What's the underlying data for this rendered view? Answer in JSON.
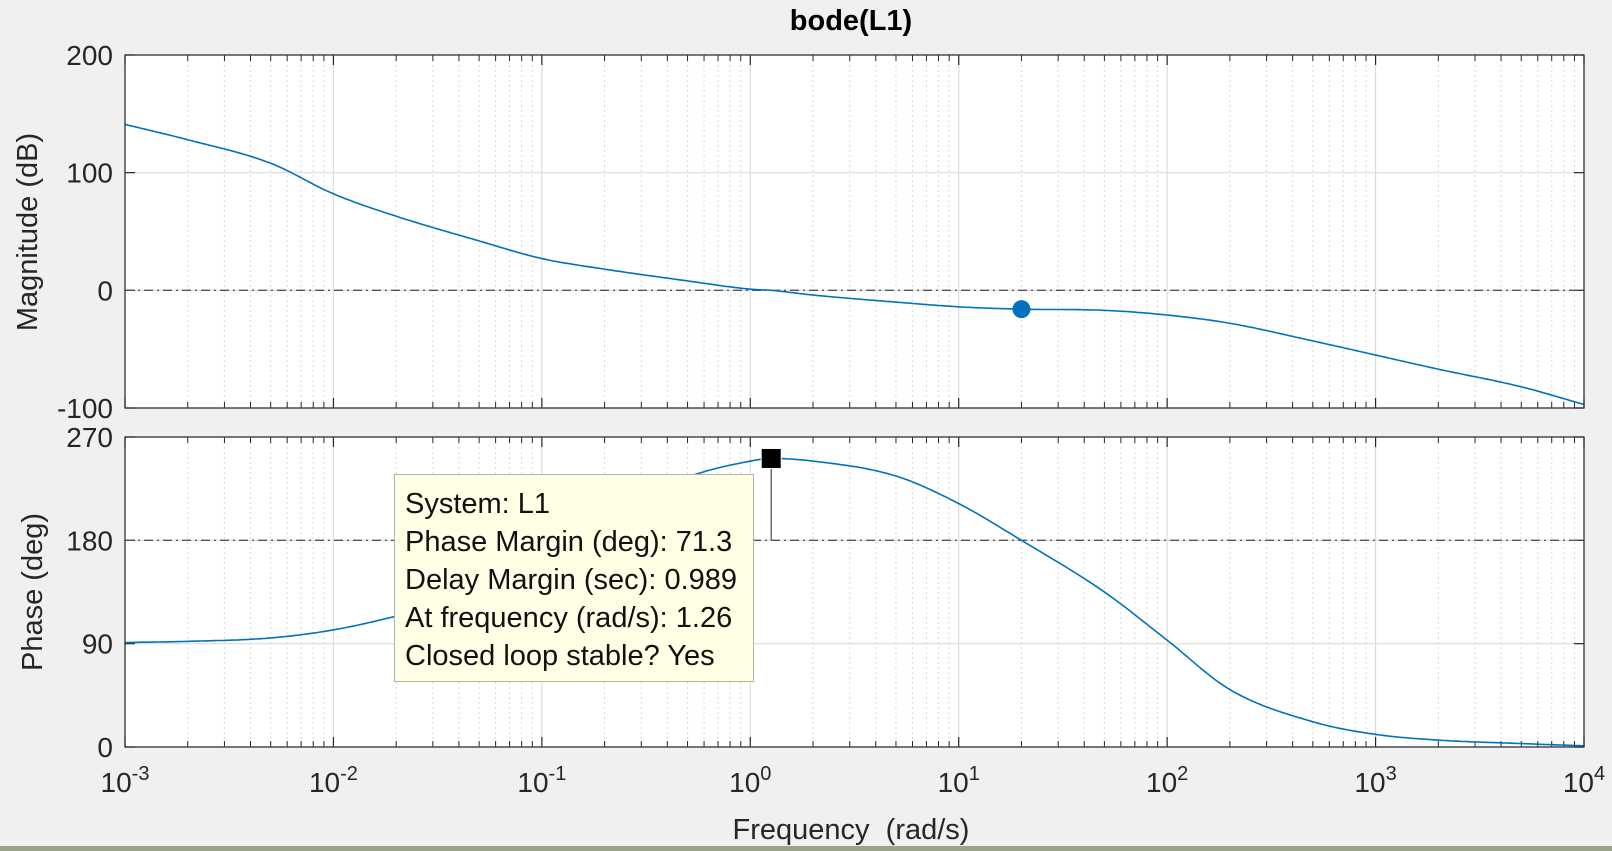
{
  "window": {
    "title": "bode(L1)"
  },
  "chart_data": {
    "type": "line",
    "title": "bode(L1)",
    "xlabel": "Frequency  (rad/s)",
    "x_scale": "log",
    "xlim": [
      0.001,
      10000
    ],
    "x_ticks": [
      0.001,
      0.01,
      0.1,
      1,
      10,
      100,
      1000,
      10000
    ],
    "x_tick_labels": [
      {
        "base": "10",
        "exp": "-3"
      },
      {
        "base": "10",
        "exp": "-2"
      },
      {
        "base": "10",
        "exp": "-1"
      },
      {
        "base": "10",
        "exp": "0"
      },
      {
        "base": "10",
        "exp": "1"
      },
      {
        "base": "10",
        "exp": "2"
      },
      {
        "base": "10",
        "exp": "3"
      },
      {
        "base": "10",
        "exp": "4"
      }
    ],
    "grid": true,
    "line_color": "#0072bd",
    "panels": [
      {
        "name": "magnitude",
        "ylabel": "Magnitude (dB)",
        "ylim": [
          -100,
          200
        ],
        "y_ticks": [
          -100,
          0,
          100,
          200
        ],
        "y_tick_labels": [
          "-100",
          "0",
          "100",
          "200"
        ],
        "reference_line": 0,
        "series": [
          {
            "x": [
              0.001,
              0.002,
              0.005,
              0.01,
              0.02,
              0.05,
              0.1,
              0.2,
              0.5,
              1,
              1.26,
              2,
              5,
              10,
              20,
              50,
              100,
              200,
              500,
              1000,
              2000,
              5000,
              10000
            ],
            "y": [
              141,
              128,
              108,
              82,
              63,
              42,
              27,
              18,
              8,
              1,
              0,
              -4,
              -10,
              -14,
              -16,
              -17,
              -21,
              -28,
              -43,
              -55,
              -67,
              -82,
              -97
            ]
          }
        ],
        "marker": {
          "x": 20,
          "y": -16,
          "shape": "circle",
          "color": "#0072bd"
        }
      },
      {
        "name": "phase",
        "ylabel": "Phase (deg)",
        "ylim": [
          0,
          270
        ],
        "y_ticks": [
          0,
          90,
          180,
          270
        ],
        "y_tick_labels": [
          "0",
          "90",
          "180",
          "270"
        ],
        "reference_line": 180,
        "series": [
          {
            "x": [
              0.001,
              0.002,
              0.005,
              0.01,
              0.02,
              0.05,
              0.1,
              0.2,
              0.5,
              1,
              1.26,
              2,
              5,
              10,
              20,
              50,
              100,
              200,
              500,
              1000,
              2000,
              5000,
              10000
            ],
            "y": [
              91,
              92,
              95,
              102,
              114,
              134,
              162,
              200,
              235,
              249,
              251.3,
              249,
              236,
              212,
              180,
              135,
              93,
              50,
              22,
              11,
              6,
              3,
              1
            ]
          }
        ],
        "marker": {
          "x": 1.26,
          "y": 251.3,
          "shape": "square",
          "color": "#000000"
        },
        "margin_line": {
          "x": 1.26,
          "from": 180,
          "to": 251.3
        }
      }
    ],
    "annotation": {
      "lines": [
        "System: L1",
        "Phase Margin (deg): 71.3",
        "Delay Margin (sec): 0.989",
        "At frequency (rad/s): 1.26",
        "Closed loop stable? Yes"
      ]
    }
  }
}
